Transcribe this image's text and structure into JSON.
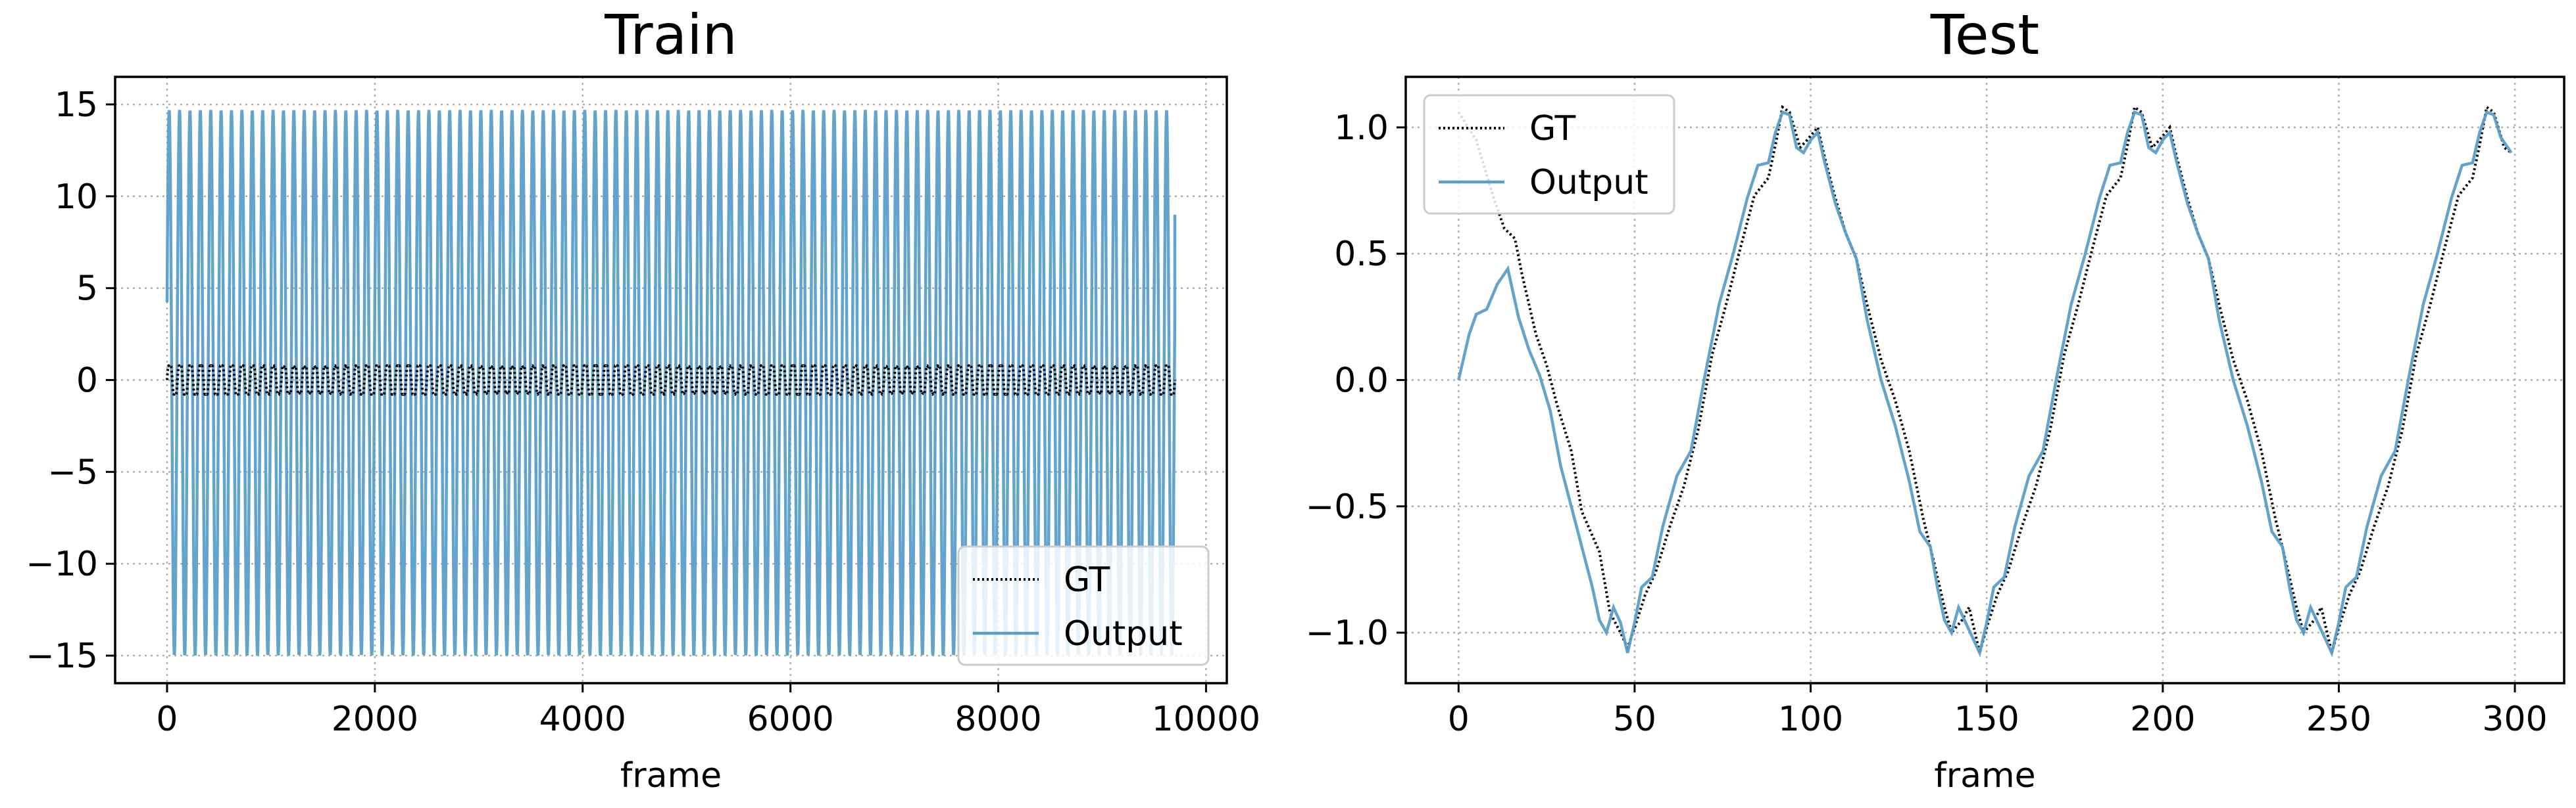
{
  "colors": {
    "gt": "#000000",
    "output": "#5b9ec9",
    "grid": "#b0b0b0",
    "frame": "#000000"
  },
  "chart_data": [
    {
      "type": "line",
      "title": "Train",
      "xlabel": "frame",
      "ylabel": "",
      "xlim": [
        -500,
        10200
      ],
      "ylim": [
        -16.5,
        16.5
      ],
      "xticks": [
        0,
        2000,
        4000,
        6000,
        8000,
        10000
      ],
      "yticks": [
        -15,
        -10,
        -5,
        0,
        5,
        10,
        15
      ],
      "grid": true,
      "legend_position": "lower-right",
      "legend": [
        "GT",
        "Output"
      ],
      "series": [
        {
          "name": "GT",
          "style": "dotted",
          "x_start": 0,
          "x_end": 9700,
          "period_frames": 100,
          "amplitude_approx": 1.08
        },
        {
          "name": "Output",
          "style": "solid",
          "x_start": 0,
          "x_end": 9700,
          "period_frames": 100,
          "min": -15,
          "max": 14.7,
          "last_value": 9
        }
      ]
    },
    {
      "type": "line",
      "title": "Test",
      "xlabel": "frame",
      "ylabel": "",
      "xlim": [
        -15,
        314
      ],
      "ylim": [
        -1.2,
        1.2
      ],
      "xticks": [
        0,
        50,
        100,
        150,
        200,
        250,
        300
      ],
      "yticks": [
        -1.0,
        -0.5,
        0.0,
        0.5,
        1.0
      ],
      "grid": true,
      "legend_position": "upper-left",
      "legend": [
        "GT",
        "Output"
      ],
      "series": [
        {
          "name": "GT",
          "style": "dotted",
          "points": [
            [
              0,
              1.06
            ],
            [
              5,
              0.95
            ],
            [
              10,
              0.72
            ],
            [
              13,
              0.6
            ],
            [
              16,
              0.56
            ],
            [
              18,
              0.42
            ],
            [
              22,
              0.18
            ],
            [
              25,
              0.06
            ],
            [
              28,
              -0.1
            ],
            [
              32,
              -0.28
            ],
            [
              35,
              -0.52
            ],
            [
              40,
              -0.68
            ],
            [
              43,
              -0.92
            ],
            [
              46,
              -1.0
            ],
            [
              48,
              -1.06
            ],
            [
              50,
              -0.98
            ],
            [
              53,
              -0.85
            ],
            [
              56,
              -0.76
            ],
            [
              60,
              -0.58
            ],
            [
              64,
              -0.42
            ],
            [
              68,
              -0.2
            ],
            [
              72,
              0.1
            ],
            [
              76,
              0.3
            ],
            [
              80,
              0.52
            ],
            [
              84,
              0.73
            ],
            [
              88,
              0.8
            ],
            [
              90,
              0.93
            ],
            [
              92,
              1.08
            ],
            [
              94,
              1.06
            ],
            [
              97,
              0.92
            ],
            [
              99,
              0.95
            ],
            [
              102,
              1.0
            ],
            [
              104,
              0.88
            ],
            [
              107,
              0.72
            ],
            [
              110,
              0.58
            ],
            [
              113,
              0.48
            ],
            [
              116,
              0.3
            ],
            [
              120,
              0.08
            ],
            [
              124,
              -0.08
            ],
            [
              128,
              -0.28
            ],
            [
              132,
              -0.55
            ],
            [
              135,
              -0.72
            ],
            [
              138,
              -0.9
            ],
            [
              140,
              -1.0
            ],
            [
              143,
              -0.95
            ],
            [
              145,
              -0.9
            ],
            [
              148,
              -1.08
            ],
            [
              150,
              -0.98
            ],
            [
              153,
              -0.85
            ],
            [
              156,
              -0.76
            ],
            [
              160,
              -0.58
            ],
            [
              164,
              -0.42
            ],
            [
              168,
              -0.2
            ],
            [
              172,
              0.1
            ],
            [
              176,
              0.3
            ],
            [
              180,
              0.52
            ],
            [
              184,
              0.73
            ],
            [
              188,
              0.8
            ],
            [
              190,
              0.93
            ],
            [
              192,
              1.08
            ],
            [
              194,
              1.06
            ],
            [
              197,
              0.92
            ],
            [
              199,
              0.95
            ],
            [
              202,
              1.0
            ],
            [
              204,
              0.88
            ],
            [
              207,
              0.72
            ],
            [
              210,
              0.58
            ],
            [
              213,
              0.48
            ],
            [
              216,
              0.3
            ],
            [
              220,
              0.08
            ],
            [
              224,
              -0.08
            ],
            [
              228,
              -0.28
            ],
            [
              232,
              -0.55
            ],
            [
              235,
              -0.72
            ],
            [
              238,
              -0.9
            ],
            [
              240,
              -1.0
            ],
            [
              243,
              -0.95
            ],
            [
              245,
              -0.9
            ],
            [
              248,
              -1.08
            ],
            [
              250,
              -0.98
            ],
            [
              253,
              -0.85
            ],
            [
              256,
              -0.76
            ],
            [
              260,
              -0.58
            ],
            [
              264,
              -0.42
            ],
            [
              268,
              -0.2
            ],
            [
              272,
              0.1
            ],
            [
              276,
              0.3
            ],
            [
              280,
              0.52
            ],
            [
              284,
              0.73
            ],
            [
              288,
              0.8
            ],
            [
              290,
              0.93
            ],
            [
              292,
              1.08
            ],
            [
              294,
              1.06
            ],
            [
              297,
              0.92
            ],
            [
              299,
              0.9
            ]
          ]
        },
        {
          "name": "Output",
          "style": "solid",
          "points": [
            [
              0,
              0.0
            ],
            [
              3,
              0.18
            ],
            [
              5,
              0.26
            ],
            [
              8,
              0.28
            ],
            [
              11,
              0.38
            ],
            [
              14,
              0.44
            ],
            [
              17,
              0.25
            ],
            [
              20,
              0.12
            ],
            [
              23,
              0.02
            ],
            [
              26,
              -0.12
            ],
            [
              29,
              -0.34
            ],
            [
              32,
              -0.5
            ],
            [
              35,
              -0.66
            ],
            [
              38,
              -0.82
            ],
            [
              40,
              -0.95
            ],
            [
              42,
              -1.0
            ],
            [
              44,
              -0.9
            ],
            [
              46,
              -0.96
            ],
            [
              48,
              -1.08
            ],
            [
              50,
              -0.96
            ],
            [
              52,
              -0.82
            ],
            [
              55,
              -0.78
            ],
            [
              58,
              -0.58
            ],
            [
              62,
              -0.38
            ],
            [
              66,
              -0.28
            ],
            [
              70,
              0.02
            ],
            [
              74,
              0.3
            ],
            [
              78,
              0.5
            ],
            [
              82,
              0.72
            ],
            [
              85,
              0.85
            ],
            [
              88,
              0.86
            ],
            [
              90,
              0.98
            ],
            [
              92,
              1.06
            ],
            [
              94,
              1.05
            ],
            [
              96,
              0.92
            ],
            [
              98,
              0.9
            ],
            [
              100,
              0.95
            ],
            [
              102,
              0.98
            ],
            [
              104,
              0.86
            ],
            [
              107,
              0.7
            ],
            [
              110,
              0.58
            ],
            [
              113,
              0.48
            ],
            [
              116,
              0.24
            ],
            [
              120,
              0.0
            ],
            [
              124,
              -0.18
            ],
            [
              128,
              -0.4
            ],
            [
              131,
              -0.6
            ],
            [
              134,
              -0.66
            ],
            [
              136,
              -0.82
            ],
            [
              138,
              -0.95
            ],
            [
              140,
              -1.0
            ],
            [
              142,
              -0.9
            ],
            [
              144,
              -0.96
            ],
            [
              148,
              -1.08
            ],
            [
              150,
              -0.96
            ],
            [
              152,
              -0.82
            ],
            [
              155,
              -0.78
            ],
            [
              158,
              -0.58
            ],
            [
              162,
              -0.38
            ],
            [
              166,
              -0.28
            ],
            [
              170,
              0.02
            ],
            [
              174,
              0.3
            ],
            [
              178,
              0.5
            ],
            [
              182,
              0.72
            ],
            [
              185,
              0.85
            ],
            [
              188,
              0.86
            ],
            [
              190,
              0.98
            ],
            [
              192,
              1.06
            ],
            [
              194,
              1.05
            ],
            [
              196,
              0.92
            ],
            [
              198,
              0.9
            ],
            [
              200,
              0.95
            ],
            [
              202,
              0.98
            ],
            [
              204,
              0.86
            ],
            [
              207,
              0.7
            ],
            [
              210,
              0.58
            ],
            [
              213,
              0.48
            ],
            [
              216,
              0.24
            ],
            [
              220,
              0.0
            ],
            [
              224,
              -0.18
            ],
            [
              228,
              -0.4
            ],
            [
              231,
              -0.6
            ],
            [
              234,
              -0.66
            ],
            [
              236,
              -0.82
            ],
            [
              238,
              -0.95
            ],
            [
              240,
              -1.0
            ],
            [
              242,
              -0.9
            ],
            [
              244,
              -0.96
            ],
            [
              248,
              -1.08
            ],
            [
              250,
              -0.96
            ],
            [
              252,
              -0.82
            ],
            [
              255,
              -0.78
            ],
            [
              258,
              -0.58
            ],
            [
              262,
              -0.38
            ],
            [
              266,
              -0.28
            ],
            [
              270,
              0.02
            ],
            [
              274,
              0.3
            ],
            [
              278,
              0.5
            ],
            [
              282,
              0.72
            ],
            [
              285,
              0.85
            ],
            [
              288,
              0.86
            ],
            [
              290,
              0.98
            ],
            [
              292,
              1.06
            ],
            [
              294,
              1.05
            ],
            [
              296,
              0.96
            ],
            [
              299,
              0.9
            ]
          ]
        }
      ]
    }
  ]
}
